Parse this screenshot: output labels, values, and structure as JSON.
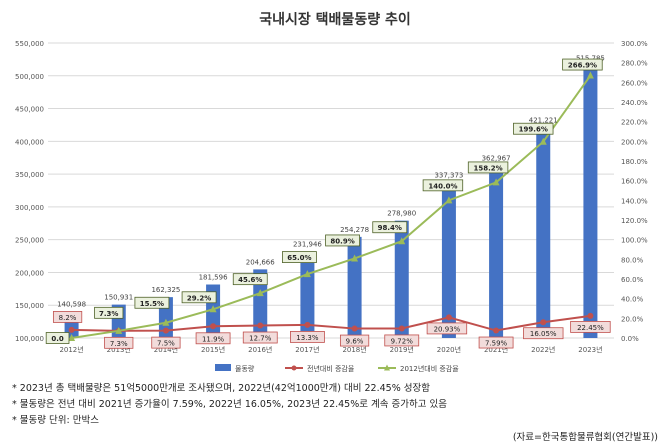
{
  "chart_data": {
    "type": "bar",
    "title": "국내시장 택배물동량 추이",
    "categories": [
      "2012년",
      "2013년",
      "2014년",
      "2015년",
      "2016년",
      "2017년",
      "2018년",
      "2019년",
      "2020년",
      "2021년",
      "2022년",
      "2023년"
    ],
    "series": [
      {
        "name": "물동량",
        "type": "bar",
        "axis": "left",
        "values": [
          140598,
          150931,
          162325,
          181596,
          204666,
          231946,
          254278,
          278980,
          337373,
          362967,
          421221,
          515785
        ],
        "labels": [
          "140,598",
          "150,931",
          "162,325",
          "181,596",
          "204,666",
          "231,946",
          "254,278",
          "278,980",
          "337,373",
          "362,967",
          "421,221",
          "515,785"
        ],
        "color": "#4472c4"
      },
      {
        "name": "전년대비 증감율",
        "type": "line",
        "axis": "right",
        "values": [
          8.2,
          7.3,
          7.5,
          11.9,
          12.7,
          13.3,
          9.6,
          9.72,
          20.93,
          7.59,
          16.05,
          22.45
        ],
        "labels": [
          "8.2%",
          "7.3%",
          "7.5%",
          "11.9%",
          "12.7%",
          "13.3%",
          "9.6%",
          "9.72%",
          "20.93%",
          "7.59%",
          "16.05%",
          "22.45%"
        ],
        "color": "#c0504d"
      },
      {
        "name": "2012년대비 증감율",
        "type": "line",
        "axis": "right",
        "values": [
          0,
          7.3,
          15.5,
          29.2,
          45.6,
          65.0,
          80.9,
          98.4,
          140.0,
          158.2,
          199.6,
          266.9
        ],
        "labels": [
          "0.0",
          "7.3%",
          "15.5%",
          "29.2%",
          "45.6%",
          "65.0%",
          "80.9%",
          "98.4%",
          "140.0%",
          "158.2%",
          "199.6%",
          "266.9%"
        ],
        "color": "#9bbb59"
      }
    ],
    "y_left": {
      "min": 100000,
      "max": 550000,
      "ticks": [
        100000,
        150000,
        200000,
        250000,
        300000,
        350000,
        400000,
        450000,
        500000,
        550000
      ],
      "tick_labels": [
        "100,000",
        "150,000",
        "200,000",
        "250,000",
        "300,000",
        "350,000",
        "400,000",
        "450,000",
        "500,000",
        "550,000"
      ]
    },
    "y_right": {
      "min": 0,
      "max": 300,
      "ticks": [
        0,
        20,
        40,
        60,
        80,
        100,
        120,
        140,
        160,
        180,
        200,
        220,
        240,
        260,
        280,
        300
      ],
      "tick_labels": [
        "0.0%",
        "20.0%",
        "40.0%",
        "60.0%",
        "80.0%",
        "100.0%",
        "120.0%",
        "140.0%",
        "160.0%",
        "180.0%",
        "200.0%",
        "220.0%",
        "240.0%",
        "260.0%",
        "280.0%",
        "300.0%"
      ]
    },
    "grid": true,
    "legend": "bottom"
  },
  "notes": [
    "* 2023년 총 택배물량은 51억5000만개로 조사됐으며, 2022년(42억1000만개) 대비 22.45% 성장함",
    "* 물동량은 전년 대비 2021년 증가율이 7.59%, 2022년 16.05%, 2023년 22.45%로 계속 증가하고 있음",
    "* 물동량 단위: 만박스"
  ],
  "source": "(자료=한국통합물류협회(연간발표))"
}
